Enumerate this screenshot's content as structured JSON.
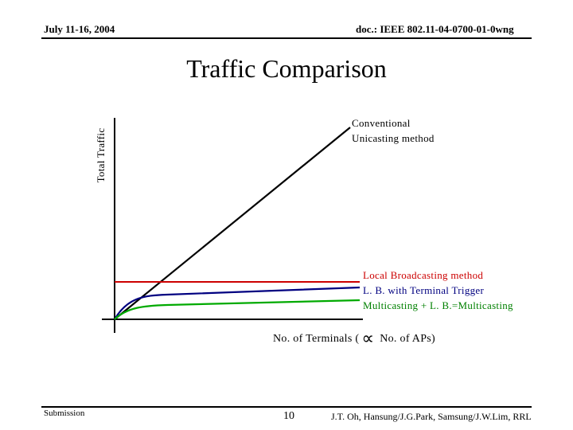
{
  "header": {
    "date": "July 11-16, 2004",
    "doc_id": "doc.: IEEE 802.11-04-0700-01-0wng"
  },
  "title": "Traffic Comparison",
  "diagram": {
    "y_axis_label": "Total Traffic",
    "x_axis_label_prefix": "No. of Terminals (",
    "x_axis_symbol": "∝",
    "x_axis_label_suffix": " No. of APs)",
    "curves": {
      "conventional_line1": "Conventional",
      "conventional_line2": "Unicasting method",
      "local_broadcasting": "Local Broadcasting method",
      "terminal_trigger": "L. B. with Terminal Trigger",
      "multicasting": "Multicasting + L. B.=Multicasting"
    },
    "colors": {
      "conventional": "#000000",
      "local_broadcasting": "#cc0000",
      "terminal_trigger": "#000080",
      "multicasting": "#008000"
    }
  },
  "footer": {
    "left": "Submission",
    "page": "10",
    "authors": "J.T. Oh, Hansung/J.G.Park, Samsung/J.W.Lim, RRL"
  }
}
